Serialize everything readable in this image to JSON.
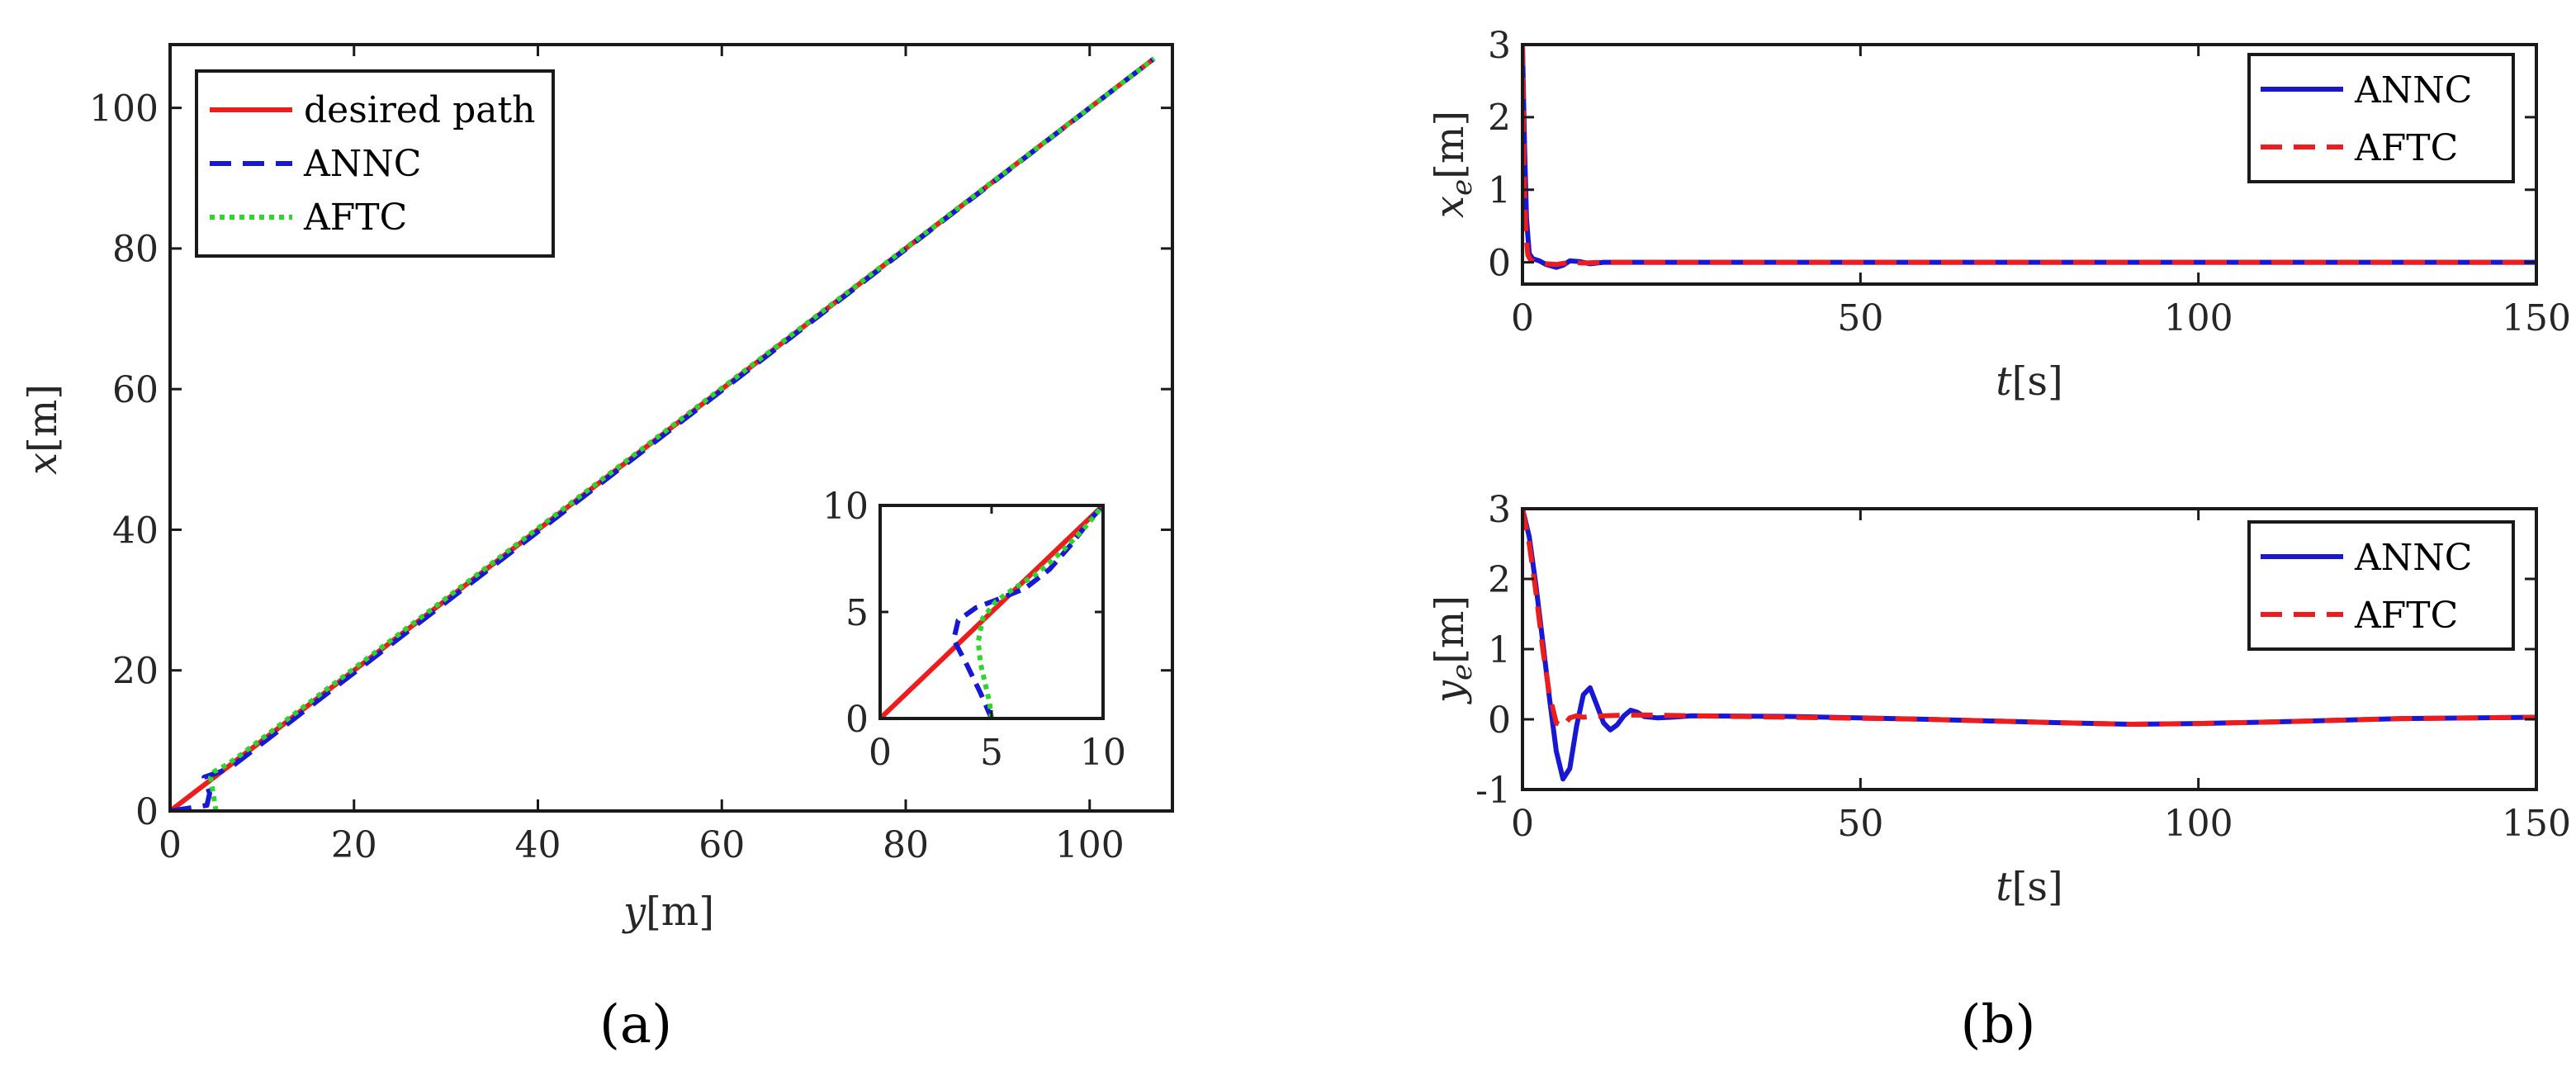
{
  "colors": {
    "red": "#ee1c1c",
    "blue": "#1818d4",
    "green": "#2fd42f"
  },
  "captions": {
    "a": "(a)",
    "b": "(b)"
  },
  "chart_data": [
    {
      "id": "a",
      "type": "line",
      "xlabel_var": "y",
      "xlabel_unit": "[m]",
      "ylabel_var": "x",
      "ylabel_unit": "[m]",
      "xlim": [
        0,
        109
      ],
      "ylim": [
        0,
        109
      ],
      "xticks": [
        0,
        20,
        40,
        60,
        80,
        100
      ],
      "yticks": [
        0,
        20,
        40,
        60,
        80,
        100
      ],
      "legend": "top-left",
      "series": [
        {
          "name": "desired path",
          "color": "red",
          "dash": "solid",
          "x": [
            0,
            107
          ],
          "y": [
            0,
            107
          ]
        },
        {
          "name": "ANNC",
          "color": "blue",
          "dash": "dashed",
          "x": [
            0,
            4,
            4.3,
            3.7,
            5.5,
            7,
            8.5,
            107
          ],
          "y": [
            0,
            0.8,
            2.5,
            4.8,
            5.6,
            6.6,
            8.1,
            107
          ]
        },
        {
          "name": "AFTC",
          "color": "green",
          "dash": "dotted",
          "x": [
            5,
            4.8,
            4.6,
            4.4,
            4.8,
            6.2,
            7.6,
            107
          ],
          "y": [
            0,
            1.5,
            3.2,
            4.8,
            5.6,
            6.6,
            7.9,
            107
          ]
        }
      ],
      "inset": {
        "xlim": [
          0,
          10
        ],
        "ylim": [
          0,
          10
        ],
        "xticks": [
          0,
          5,
          10
        ],
        "yticks": [
          0,
          5,
          10
        ],
        "series": [
          {
            "color": "red",
            "dash": "solid",
            "x": [
              0,
              10
            ],
            "y": [
              0,
              10
            ]
          },
          {
            "color": "blue",
            "dash": "dashed",
            "x": [
              5,
              4.5,
              3.9,
              3.3,
              3.5,
              4.3,
              5.3,
              6.5,
              7.6,
              8.6,
              9.4,
              10
            ],
            "y": [
              0,
              1.2,
              2.5,
              3.7,
              4.6,
              5.2,
              5.6,
              6.1,
              7.0,
              8.2,
              9.3,
              10
            ]
          },
          {
            "color": "green",
            "dash": "dotted",
            "x": [
              5,
              4.9,
              4.7,
              4.5,
              4.4,
              4.6,
              5.2,
              6.0,
              6.9,
              7.7,
              8.5,
              9.3,
              10
            ],
            "y": [
              0,
              0.8,
              1.7,
              2.6,
              3.6,
              4.7,
              5.5,
              6.1,
              6.7,
              7.4,
              8.2,
              9.1,
              10
            ]
          }
        ]
      }
    },
    {
      "id": "b1",
      "type": "line",
      "xlabel_var": "t",
      "xlabel_unit": "[s]",
      "ylabel_var": "x",
      "ylabel_sub": "e",
      "ylabel_unit": "[m]",
      "xlim": [
        0,
        150
      ],
      "ylim": [
        -0.3,
        3
      ],
      "xticks": [
        0,
        50,
        100,
        150
      ],
      "yticks": [
        0,
        1,
        2,
        3
      ],
      "legend": "top-right",
      "series": [
        {
          "name": "ANNC",
          "color": "blue",
          "dash": "solid",
          "x": [
            0,
            0.3,
            0.6,
            1,
            1.5,
            2.5,
            3.5,
            5,
            6,
            7,
            8.5,
            10,
            12,
            150
          ],
          "y": [
            3,
            1.6,
            0.6,
            0.12,
            0.05,
            0.02,
            -0.03,
            -0.07,
            -0.04,
            0.02,
            0.01,
            -0.02,
            0,
            0
          ]
        },
        {
          "name": "AFTC",
          "color": "red",
          "dash": "dashed",
          "x": [
            0,
            0.25,
            0.5,
            0.8,
            1.2,
            2,
            3.5,
            5,
            7,
            9,
            12,
            150
          ],
          "y": [
            3,
            1.2,
            0.4,
            0.1,
            0.03,
            0.01,
            -0.02,
            -0.03,
            0,
            -0.01,
            0,
            0
          ]
        }
      ]
    },
    {
      "id": "b2",
      "type": "line",
      "xlabel_var": "t",
      "xlabel_unit": "[s]",
      "ylabel_var": "y",
      "ylabel_sub": "e",
      "ylabel_unit": "[m]",
      "xlim": [
        0,
        150
      ],
      "ylim": [
        -1,
        3
      ],
      "xticks": [
        0,
        50,
        100,
        150
      ],
      "yticks": [
        -1,
        0,
        1,
        2,
        3
      ],
      "legend": "top-right",
      "series": [
        {
          "name": "ANNC",
          "color": "blue",
          "dash": "solid",
          "x": [
            0,
            1,
            2,
            3,
            4,
            5,
            6,
            7,
            8,
            9,
            10,
            11,
            12,
            13,
            14,
            15,
            16,
            17,
            18,
            20,
            22,
            25,
            40,
            60,
            80,
            90,
            100,
            110,
            130,
            150
          ],
          "y": [
            3,
            2.6,
            1.9,
            1.1,
            0.3,
            -0.45,
            -0.85,
            -0.7,
            -0.1,
            0.35,
            0.45,
            0.2,
            -0.05,
            -0.15,
            -0.08,
            0.05,
            0.13,
            0.1,
            0.04,
            0.02,
            0.03,
            0.05,
            0.04,
            0,
            -0.05,
            -0.07,
            -0.06,
            -0.04,
            0.01,
            0.03
          ]
        },
        {
          "name": "AFTC",
          "color": "red",
          "dash": "dashed",
          "x": [
            0,
            1,
            2,
            3,
            4,
            5,
            6,
            7,
            8,
            9,
            10,
            12,
            15,
            20,
            25,
            40,
            60,
            80,
            90,
            100,
            110,
            130,
            150
          ],
          "y": [
            3,
            2.5,
            1.8,
            1.0,
            0.35,
            -0.05,
            -0.1,
            0.02,
            0.05,
            0.03,
            0.04,
            0.05,
            0.06,
            0.06,
            0.05,
            0.03,
            0,
            -0.05,
            -0.07,
            -0.06,
            -0.04,
            0.01,
            0.03
          ]
        }
      ]
    }
  ]
}
